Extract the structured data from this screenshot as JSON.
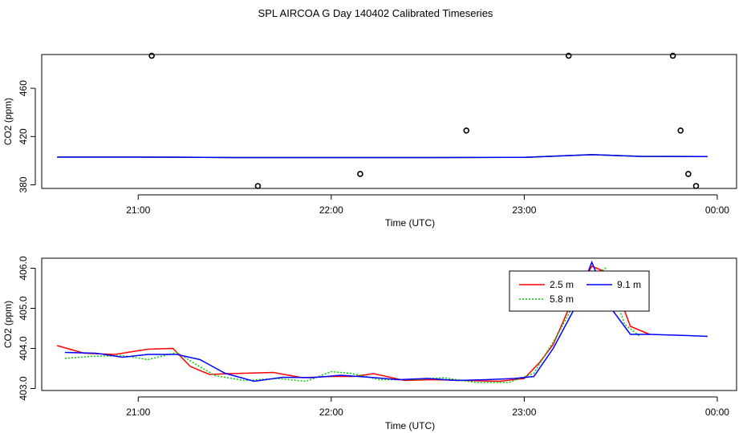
{
  "title": "SPL AIRCOA G  Day 140402  Calibrated Timeseries",
  "chart_data": [
    {
      "type": "line",
      "xlabel": "Time (UTC)",
      "ylabel": "CO2 (ppm)",
      "xlim": [
        20.5,
        24.1
      ],
      "ylim": [
        377,
        488
      ],
      "xticks": [
        21,
        22,
        23,
        24
      ],
      "xtick_labels": [
        "21:00",
        "22:00",
        "23:00",
        "00:00"
      ],
      "yticks": [
        380,
        420,
        460
      ],
      "ytick_labels": [
        "380",
        "420",
        "460"
      ],
      "grid": false,
      "series": [
        {
          "color": "#ff0000",
          "style": "line",
          "x": [
            20.58,
            21.0,
            21.5,
            22.0,
            22.5,
            23.0,
            23.35,
            23.6,
            23.95
          ],
          "y": [
            403.0,
            403.0,
            402.6,
            402.6,
            402.6,
            402.8,
            405.0,
            403.6,
            403.4
          ]
        },
        {
          "color": "#00cc00",
          "style": "line",
          "x": [
            20.58,
            21.0,
            21.5,
            22.0,
            22.5,
            23.0,
            23.35,
            23.6,
            23.95
          ],
          "y": [
            403.0,
            403.0,
            402.6,
            402.6,
            402.6,
            402.8,
            405.0,
            403.6,
            403.4
          ]
        },
        {
          "color": "#0000ff",
          "style": "line",
          "x": [
            20.58,
            21.0,
            21.5,
            22.0,
            22.5,
            23.0,
            23.35,
            23.6,
            23.95
          ],
          "y": [
            403.0,
            403.0,
            402.6,
            402.6,
            402.6,
            402.8,
            405.0,
            403.6,
            403.4
          ]
        },
        {
          "color": "#000000",
          "style": "points",
          "x": [
            21.07,
            21.62,
            22.15,
            22.7,
            23.23,
            23.77,
            23.81,
            23.85,
            23.89
          ],
          "y": [
            487,
            379,
            389,
            425,
            487,
            487,
            425,
            389,
            379
          ]
        }
      ]
    },
    {
      "type": "line",
      "xlabel": "Time (UTC)",
      "ylabel": "CO2 (ppm)",
      "xlim": [
        20.5,
        24.1
      ],
      "ylim": [
        402.95,
        406.25
      ],
      "xticks": [
        21,
        22,
        23,
        24
      ],
      "xtick_labels": [
        "21:00",
        "22:00",
        "23:00",
        "00:00"
      ],
      "yticks": [
        403.0,
        404.0,
        405.0,
        406.0
      ],
      "ytick_labels": [
        "403.0",
        "404.0",
        "405.0",
        "406.0"
      ],
      "grid": false,
      "legend": {
        "placement": "top-right"
      },
      "series": [
        {
          "name": "2.5 m",
          "color": "#ff0000",
          "x": [
            20.58,
            20.72,
            20.88,
            21.05,
            21.18,
            21.27,
            21.37,
            21.47,
            21.7,
            21.85,
            22.0,
            22.12,
            22.22,
            22.38,
            22.52,
            22.7,
            22.87,
            23.0,
            23.08,
            23.15,
            23.25,
            23.35,
            23.45,
            23.55,
            23.65
          ],
          "y": [
            404.07,
            403.88,
            403.85,
            403.98,
            404.0,
            403.55,
            403.35,
            403.37,
            403.4,
            403.27,
            403.3,
            403.3,
            403.37,
            403.2,
            403.22,
            403.2,
            403.18,
            403.25,
            403.65,
            404.1,
            405.2,
            406.05,
            405.85,
            404.55,
            404.35
          ]
        },
        {
          "name": "5.8 m",
          "color": "#00cc00",
          "dashed": true,
          "x": [
            20.62,
            20.75,
            20.92,
            21.05,
            21.2,
            21.3,
            21.4,
            21.55,
            21.72,
            21.87,
            22.0,
            22.1,
            22.25,
            22.43,
            22.58,
            22.75,
            22.92,
            23.05,
            23.18,
            23.3,
            23.42,
            23.52,
            23.6
          ],
          "y": [
            403.75,
            403.8,
            403.82,
            403.72,
            403.9,
            403.6,
            403.32,
            403.2,
            403.25,
            403.18,
            403.42,
            403.38,
            403.22,
            403.22,
            403.27,
            403.15,
            403.15,
            403.38,
            404.4,
            405.5,
            406.0,
            404.6,
            404.3
          ]
        },
        {
          "name": "9.1 m",
          "color": "#0000ff",
          "x": [
            20.62,
            20.78,
            20.92,
            21.05,
            21.2,
            21.32,
            21.45,
            21.6,
            21.75,
            21.9,
            22.05,
            22.2,
            22.35,
            22.5,
            22.65,
            22.8,
            22.95,
            23.05,
            23.15,
            23.25,
            23.35,
            23.45,
            23.55,
            23.65,
            23.85,
            23.95
          ],
          "y": [
            403.9,
            403.88,
            403.78,
            403.85,
            403.85,
            403.72,
            403.38,
            403.18,
            403.28,
            403.27,
            403.33,
            403.28,
            403.22,
            403.25,
            403.2,
            403.22,
            403.25,
            403.3,
            404.0,
            404.9,
            406.15,
            405.0,
            404.35,
            404.35,
            404.32,
            404.3
          ]
        }
      ]
    }
  ]
}
